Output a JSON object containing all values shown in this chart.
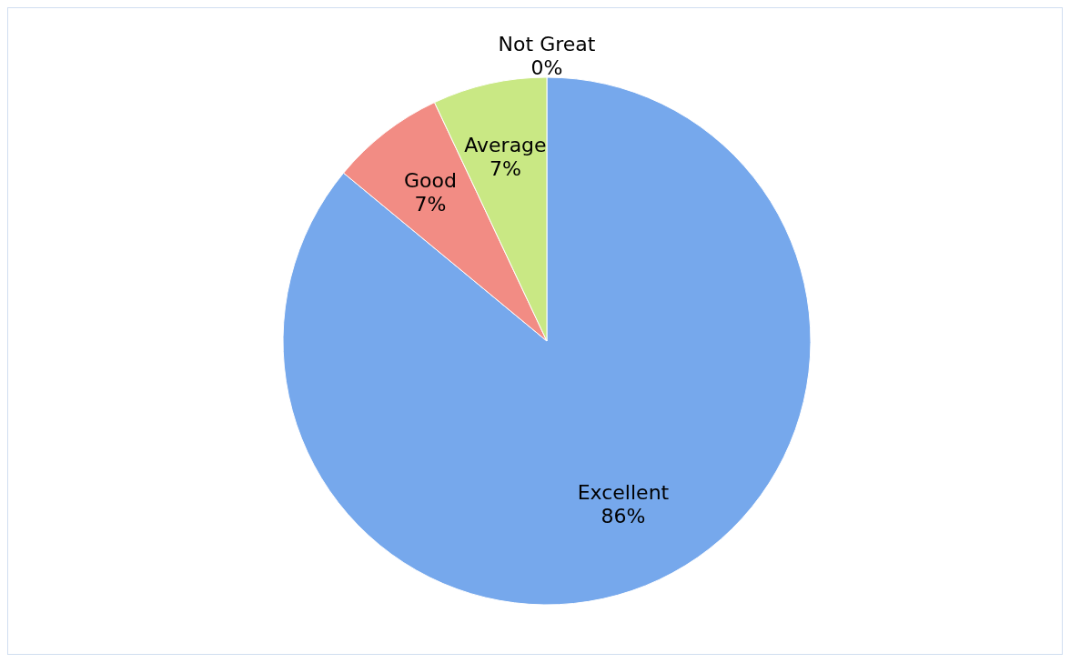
{
  "chart_data": {
    "type": "pie",
    "categories": [
      "Excellent",
      "Good",
      "Average",
      "Not Great"
    ],
    "values": [
      86,
      7,
      7,
      0
    ],
    "value_labels": [
      "86%",
      "7%",
      "7%",
      "0%"
    ],
    "colors": [
      "#76a8ec",
      "#f28c84",
      "#c9e884",
      "#9bbb59"
    ],
    "legend": false
  }
}
